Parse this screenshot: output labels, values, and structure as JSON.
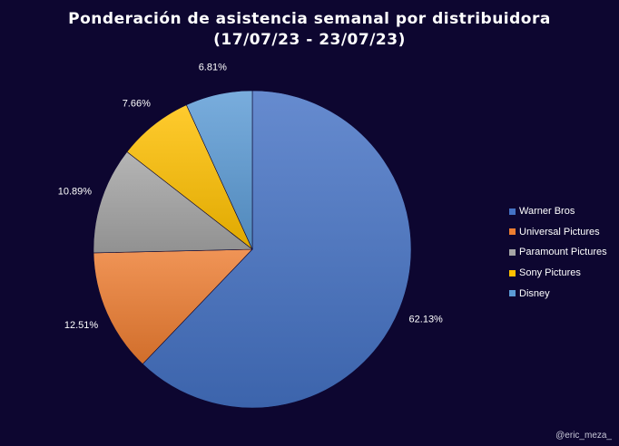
{
  "chart_data": {
    "type": "pie",
    "title": "Ponderación de asistencia semanal por distribuidora",
    "subtitle": "(17/07/23 - 23/07/23)",
    "categories": [
      "Warner Bros",
      "Universal Pictures",
      "Paramount Pictures",
      "Sony Pictures",
      "Disney"
    ],
    "values": [
      62.13,
      12.51,
      10.89,
      7.66,
      6.81
    ],
    "labels": [
      "62.13%",
      "12.51%",
      "10.89%",
      "7.66%",
      "6.81%"
    ],
    "colors": [
      "#4472c4",
      "#ed7d31",
      "#a5a5a5",
      "#ffc000",
      "#5b9bd5"
    ],
    "legend_position": "right"
  },
  "watermark": "@eric_meza_"
}
